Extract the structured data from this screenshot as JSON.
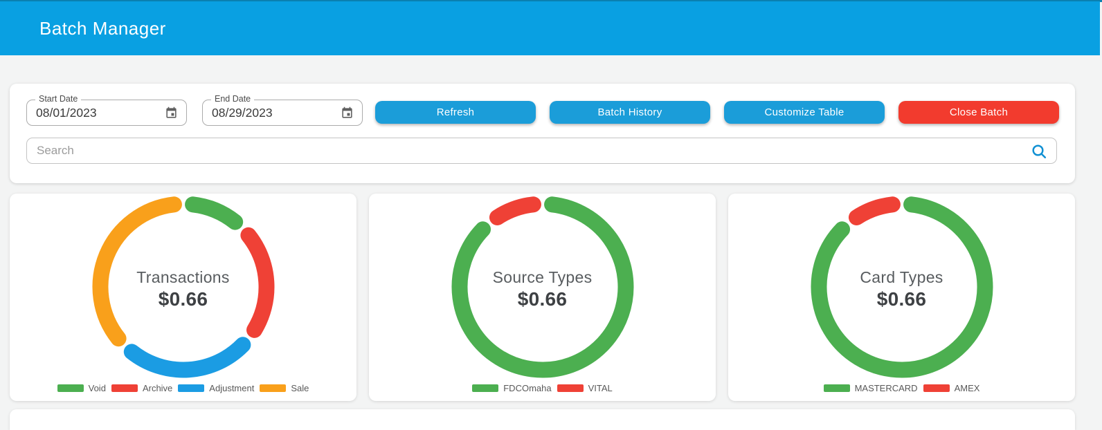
{
  "header": {
    "title": "Batch Manager"
  },
  "toolbar": {
    "start_date": {
      "label": "Start Date",
      "value": "08/01/2023"
    },
    "end_date": {
      "label": "End Date",
      "value": "08/29/2023"
    },
    "buttons": [
      {
        "label": "Refresh",
        "color": "#1b9dd9"
      },
      {
        "label": "Batch History",
        "color": "#1b9dd9"
      },
      {
        "label": "Customize Table",
        "color": "#1b9dd9"
      },
      {
        "label": "Close Batch",
        "color": "#f23b2e"
      }
    ],
    "search": {
      "placeholder": "Search"
    }
  },
  "colors": {
    "header_blue": "#09a0e2",
    "top_strip": "#0a80b0",
    "background": "#f3f4f4",
    "button_blue": "#1b9dd9",
    "button_red": "#f23b2e"
  },
  "chart_data": [
    {
      "type": "pie",
      "donut": true,
      "title": "Transactions",
      "center_value": "$0.66",
      "legend_position": "bottom",
      "segments": [
        {
          "label": "Void",
          "color": "#4caf50",
          "percent": 12.5
        },
        {
          "label": "Archive",
          "color": "#ef4136",
          "percent": 23
        },
        {
          "label": "Adjustment",
          "color": "#1b9ce3",
          "percent": 27
        },
        {
          "label": "Sale",
          "color": "#f9a01b",
          "percent": 37.5
        }
      ]
    },
    {
      "type": "pie",
      "donut": true,
      "title": "Source Types",
      "center_value": "$0.66",
      "legend_position": "bottom",
      "segments": [
        {
          "label": "FDCOmaha",
          "color": "#4caf50",
          "percent": 89
        },
        {
          "label": "VITAL",
          "color": "#ef4136",
          "percent": 11
        }
      ]
    },
    {
      "type": "pie",
      "donut": true,
      "title": "Card Types",
      "center_value": "$0.66",
      "legend_position": "bottom",
      "segments": [
        {
          "label": "MASTERCARD",
          "color": "#4caf50",
          "percent": 89
        },
        {
          "label": "AMEX",
          "color": "#ef4136",
          "percent": 11
        }
      ]
    }
  ]
}
